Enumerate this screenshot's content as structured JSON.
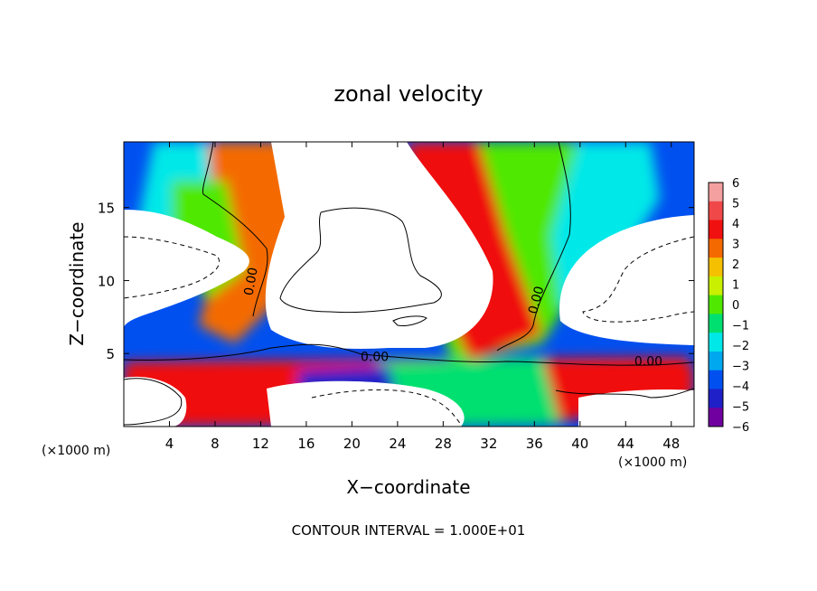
{
  "chart_data": {
    "type": "heatmap",
    "title": "zonal velocity",
    "xlabel": "X−coordinate",
    "ylabel": "Z−coordinate",
    "x_unit_left": "(×1000 m)",
    "x_unit_right": "(×1000 m)",
    "xlim": [
      0,
      50
    ],
    "ylim": [
      0,
      19.5
    ],
    "xticks": [
      "4",
      "8",
      "12",
      "16",
      "20",
      "24",
      "28",
      "32",
      "36",
      "40",
      "44",
      "48"
    ],
    "xtick_values": [
      4,
      8,
      12,
      16,
      20,
      24,
      28,
      32,
      36,
      40,
      44,
      48
    ],
    "yticks": [
      "5",
      "10",
      "15"
    ],
    "ytick_values": [
      5,
      10,
      15
    ],
    "colorbar": {
      "ticks": [
        "6",
        "5",
        "4",
        "3",
        "2",
        "1",
        "0",
        "−1",
        "−2",
        "−3",
        "−4",
        "−5",
        "−6"
      ],
      "values": [
        6,
        5,
        4,
        3,
        2,
        1,
        0,
        -1,
        -2,
        -3,
        -4,
        -5,
        -6
      ],
      "colors": {
        "6": "#f4a0a0",
        "5": "#f04848",
        "4": "#f01010",
        "3": "#f46a00",
        "2": "#f4c000",
        "1": "#c8f000",
        "0": "#50e800",
        "-1": "#00e070",
        "-2": "#00e8e8",
        "-3": "#00a8f0",
        "-4": "#0050f0",
        "-5": "#2020c8",
        "-6": "#7000a0"
      }
    },
    "contour_labels": [
      "0.00",
      "0.00",
      "0.00",
      "0.00"
    ],
    "contour_label_positions": [
      [
        11.5,
        10.2
      ],
      [
        22,
        4.8
      ],
      [
        36.5,
        8.9
      ],
      [
        46,
        4.5
      ]
    ],
    "footer": "CONTOUR INTERVAL = 1.000E+01"
  }
}
